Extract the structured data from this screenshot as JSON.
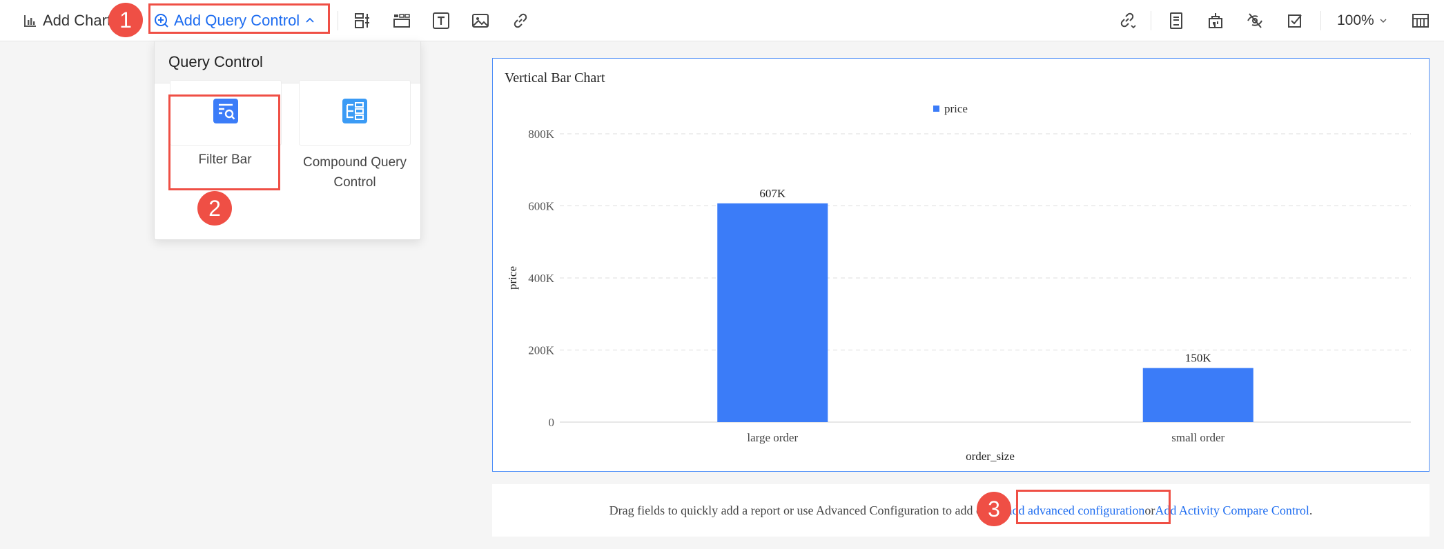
{
  "toolbar": {
    "add_chart_label": "Add Chart",
    "add_query_control_label": "Add Query Control",
    "zoom": "100%"
  },
  "dropdown": {
    "title": "Query Control",
    "items": [
      {
        "label": "Filter Bar",
        "icon": "filter-bar-icon"
      },
      {
        "label": "Compound Query Control",
        "icon": "compound-query-icon"
      }
    ]
  },
  "badges": [
    "1",
    "2",
    "3"
  ],
  "chart_data": {
    "type": "bar",
    "title": "Vertical Bar Chart",
    "categories": [
      "large order",
      "small order"
    ],
    "series": [
      {
        "name": "price",
        "values": [
          607000,
          150000
        ],
        "labels": [
          "607K",
          "150K"
        ]
      }
    ],
    "xlabel": "order_size",
    "ylabel": "price",
    "ylim": [
      0,
      800000
    ],
    "yticks": [
      0,
      200000,
      400000,
      600000,
      800000
    ],
    "ytick_labels": [
      "0",
      "200K",
      "400K",
      "600K",
      "800K"
    ],
    "grid": true,
    "legend": "top-center",
    "color": "#3b7cf8"
  },
  "footer": {
    "text_start": "Drag fields to quickly add a report or use Advanced Configuration to add chart.",
    "link1": "add advanced configuration",
    "between": "or",
    "link2": "Add Activity Compare Control",
    "end": "."
  },
  "colors": {
    "accent": "#1d6cf0",
    "badge": "#ef4f45",
    "bar": "#3b7cf8"
  }
}
